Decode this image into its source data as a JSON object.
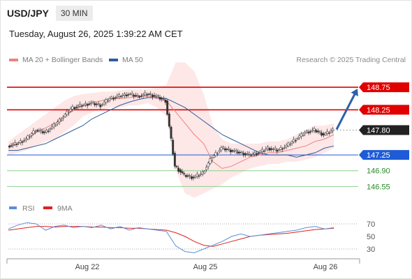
{
  "header": {
    "symbol": "USD/JPY",
    "timeframe": "30 MIN"
  },
  "timestamp": "Tuesday, August 26, 2025 1:39:22 AM CET",
  "legend": {
    "ma20": {
      "label": "MA 20 + Bollinger Bands",
      "color": "#f08080"
    },
    "ma50": {
      "label": "MA 50",
      "color": "#2e5b9c"
    },
    "copyright": "Research © 2025 Trading Central"
  },
  "rsi_legend": {
    "rsi": {
      "label": "RSI",
      "color": "#5b8fd6"
    },
    "ma9": {
      "label": "9MA",
      "color": "#e02020"
    }
  },
  "chart_data": [
    {
      "type": "line",
      "subtype": "candlestick",
      "x_ticks": [
        "Aug 22",
        "Aug 25",
        "Aug 26"
      ],
      "levels": [
        {
          "value": 148.75,
          "label": "148.75",
          "kind": "resistance",
          "color": "#e00000"
        },
        {
          "value": 148.25,
          "label": "148.25",
          "kind": "resistance",
          "color": "#e00000"
        },
        {
          "value": 147.8,
          "label": "147.80",
          "kind": "last",
          "color": "#222222"
        },
        {
          "value": 147.25,
          "label": "147.25",
          "kind": "pivot",
          "color": "#1e5bd6"
        },
        {
          "value": 146.9,
          "label": "146.90",
          "kind": "support",
          "color": "#2a8a2a"
        },
        {
          "value": 146.55,
          "label": "146.55",
          "kind": "support",
          "color": "#2a8a2a"
        }
      ],
      "ylim": [
        146.2,
        149.2
      ],
      "price": [
        147.45,
        147.5,
        147.6,
        147.8,
        147.75,
        147.9,
        148.1,
        148.3,
        148.35,
        148.4,
        148.35,
        148.5,
        148.55,
        148.6,
        148.55,
        148.6,
        148.55,
        148.45,
        147.0,
        146.8,
        146.75,
        146.85,
        147.2,
        147.4,
        147.35,
        147.3,
        147.25,
        147.3,
        147.4,
        147.35,
        147.45,
        147.6,
        147.75,
        147.8,
        147.7,
        147.8
      ],
      "ma20": [
        147.4,
        147.5,
        147.6,
        147.75,
        147.85,
        147.95,
        148.1,
        148.25,
        148.35,
        148.4,
        148.45,
        148.5,
        148.5,
        148.52,
        148.55,
        148.55,
        148.5,
        148.45,
        148.2,
        147.95,
        147.7,
        147.5,
        147.1,
        146.95,
        147.0,
        147.1,
        147.2,
        147.25,
        147.3,
        147.3,
        147.35,
        147.4,
        147.45,
        147.55,
        147.6,
        147.7
      ],
      "ma50": [
        147.35,
        147.35,
        147.4,
        147.45,
        147.5,
        147.6,
        147.7,
        147.8,
        147.9,
        148.05,
        148.15,
        148.25,
        148.35,
        148.42,
        148.48,
        148.52,
        148.52,
        148.5,
        148.4,
        148.3,
        148.15,
        148.0,
        147.85,
        147.7,
        147.6,
        147.5,
        147.4,
        147.3,
        147.25,
        147.25,
        147.25,
        147.2,
        147.25,
        147.3,
        147.4,
        147.45
      ],
      "bollinger_upper": [
        147.55,
        147.7,
        147.85,
        148.0,
        148.15,
        148.3,
        148.45,
        148.55,
        148.6,
        148.62,
        148.65,
        148.65,
        148.68,
        148.7,
        148.7,
        148.7,
        148.75,
        148.8,
        149.3,
        149.3,
        149.1,
        148.6,
        147.9,
        147.6,
        147.5,
        147.5,
        147.5,
        147.5,
        147.55,
        147.55,
        147.6,
        147.7,
        147.8,
        147.9,
        147.9,
        147.95
      ],
      "bollinger_lower": [
        147.25,
        147.3,
        147.35,
        147.45,
        147.55,
        147.6,
        147.75,
        147.9,
        148.1,
        148.2,
        148.25,
        148.3,
        148.3,
        148.35,
        148.35,
        148.4,
        148.3,
        148.1,
        146.9,
        146.4,
        146.3,
        146.4,
        146.5,
        146.6,
        146.75,
        146.85,
        146.95,
        147.0,
        147.05,
        147.05,
        147.1,
        147.1,
        147.15,
        147.2,
        147.3,
        147.4
      ],
      "projection": {
        "from": 147.8,
        "to": 148.75
      }
    },
    {
      "type": "line",
      "title": "RSI",
      "y_ticks": [
        70,
        50,
        30
      ],
      "ylim": [
        10,
        90
      ],
      "rsi": [
        62,
        68,
        72,
        70,
        60,
        66,
        68,
        64,
        66,
        64,
        68,
        62,
        66,
        60,
        64,
        62,
        60,
        58,
        35,
        26,
        24,
        30,
        36,
        42,
        50,
        54,
        50,
        52,
        54,
        56,
        58,
        60,
        64,
        66,
        62,
        64
      ],
      "ma9": [
        60,
        62,
        64,
        66,
        66,
        65,
        66,
        66,
        66,
        65,
        65,
        64,
        64,
        63,
        63,
        62,
        61,
        60,
        56,
        50,
        42,
        36,
        34,
        38,
        42,
        46,
        50,
        52,
        53,
        54,
        55,
        57,
        59,
        61,
        62,
        63
      ]
    }
  ]
}
